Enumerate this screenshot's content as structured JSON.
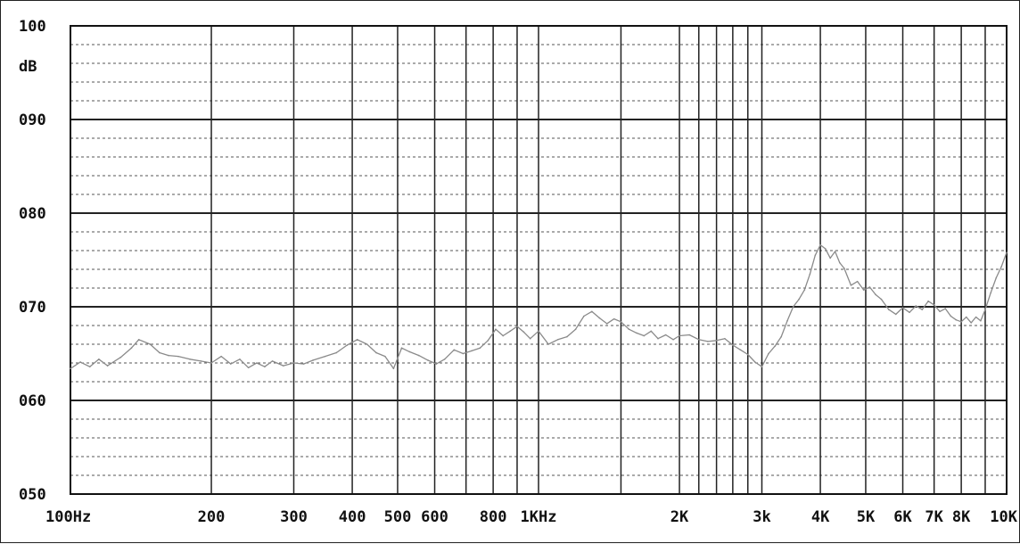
{
  "chart_data": {
    "type": "line",
    "ylabel": "dB",
    "ylim": [
      50,
      100
    ],
    "yticks": [
      {
        "value": 100,
        "label": "100"
      },
      {
        "value": 90,
        "label": "090"
      },
      {
        "value": 80,
        "label": "080"
      },
      {
        "value": 70,
        "label": "070"
      },
      {
        "value": 60,
        "label": "060"
      },
      {
        "value": 50,
        "label": "050"
      }
    ],
    "xscale": "log",
    "xlim": [
      100,
      10000
    ],
    "xticks": [
      {
        "value": 100,
        "label": "100Hz"
      },
      {
        "value": 200,
        "label": "200"
      },
      {
        "value": 300,
        "label": "300"
      },
      {
        "value": 400,
        "label": "400"
      },
      {
        "value": 500,
        "label": "500"
      },
      {
        "value": 600,
        "label": "600"
      },
      {
        "value": 800,
        "label": "800"
      },
      {
        "value": 1000,
        "label": "1KHz"
      },
      {
        "value": 2000,
        "label": "2K"
      },
      {
        "value": 3000,
        "label": "3k"
      },
      {
        "value": 4000,
        "label": "4K"
      },
      {
        "value": 5000,
        "label": "5K"
      },
      {
        "value": 6000,
        "label": "6K"
      },
      {
        "value": 7000,
        "label": "7K"
      },
      {
        "value": 8000,
        "label": "8K"
      },
      {
        "value": 10000,
        "label": "10K"
      }
    ],
    "grid_lines_x": [
      100,
      200,
      300,
      400,
      500,
      600,
      700,
      800,
      900,
      1000,
      1500,
      2000,
      2200,
      2400,
      2600,
      2800,
      3000,
      4000,
      5000,
      6000,
      7000,
      8000,
      9000,
      10000
    ],
    "grid": true,
    "series": [
      {
        "color": "#8a8a8a",
        "x": [
          100,
          105,
          110,
          115,
          120,
          128,
          135,
          140,
          148,
          155,
          162,
          170,
          180,
          190,
          200,
          210,
          220,
          230,
          240,
          250,
          260,
          270,
          285,
          300,
          315,
          330,
          350,
          370,
          390,
          410,
          430,
          450,
          470,
          490,
          510,
          530,
          555,
          580,
          605,
          630,
          660,
          690,
          720,
          750,
          780,
          810,
          840,
          870,
          900,
          930,
          960,
          1000,
          1050,
          1100,
          1150,
          1200,
          1250,
          1300,
          1350,
          1400,
          1450,
          1500,
          1560,
          1620,
          1680,
          1740,
          1800,
          1870,
          1940,
          2000,
          2100,
          2200,
          2300,
          2400,
          2500,
          2600,
          2700,
          2800,
          2900,
          3000,
          3100,
          3200,
          3300,
          3400,
          3500,
          3600,
          3700,
          3800,
          3900,
          4000,
          4100,
          4200,
          4300,
          4400,
          4500,
          4650,
          4800,
          4950,
          5100,
          5250,
          5400,
          5600,
          5800,
          6000,
          6200,
          6400,
          6600,
          6800,
          7000,
          7200,
          7400,
          7600,
          7800,
          8000,
          8200,
          8400,
          8600,
          8800,
          9000,
          9250,
          9500,
          9750,
          10000
        ],
        "y": [
          63.4,
          64.1,
          63.6,
          64.4,
          63.7,
          64.6,
          65.6,
          66.5,
          66.0,
          65.1,
          64.8,
          64.7,
          64.4,
          64.2,
          64.0,
          64.7,
          63.9,
          64.4,
          63.5,
          64.0,
          63.6,
          64.2,
          63.7,
          64.0,
          63.9,
          64.3,
          64.7,
          65.1,
          65.9,
          66.5,
          66.0,
          65.1,
          64.7,
          63.4,
          65.6,
          65.2,
          64.8,
          64.3,
          63.9,
          64.4,
          65.4,
          65.0,
          65.3,
          65.6,
          66.4,
          67.6,
          66.9,
          67.4,
          67.9,
          67.3,
          66.6,
          67.4,
          66.0,
          66.5,
          66.8,
          67.6,
          69.0,
          69.5,
          68.8,
          68.2,
          68.7,
          68.4,
          67.6,
          67.2,
          66.9,
          67.4,
          66.6,
          67.0,
          66.5,
          66.9,
          67.0,
          66.5,
          66.3,
          66.4,
          66.6,
          65.9,
          65.4,
          64.9,
          64.1,
          63.6,
          65.0,
          65.8,
          66.8,
          68.5,
          70.0,
          70.8,
          71.8,
          73.5,
          75.5,
          76.6,
          76.2,
          75.2,
          75.9,
          74.7,
          74.1,
          72.3,
          72.7,
          71.8,
          72.1,
          71.3,
          70.8,
          69.7,
          69.2,
          69.9,
          69.4,
          70.1,
          69.7,
          70.6,
          70.2,
          69.5,
          69.8,
          69.0,
          68.6,
          68.4,
          68.9,
          68.3,
          68.9,
          68.5,
          69.7,
          71.5,
          73.1,
          74.3,
          75.8
        ]
      }
    ]
  }
}
